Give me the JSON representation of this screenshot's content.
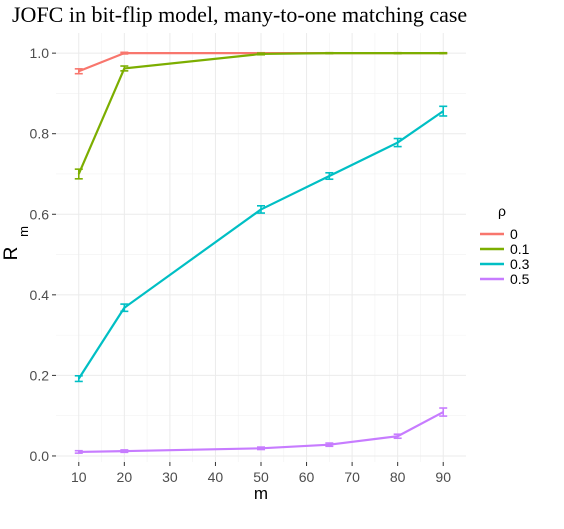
{
  "chart_data": {
    "type": "line",
    "title": "JOFC in bit-flip model, many-to-one matching case",
    "xlabel": "m",
    "ylabel": "R",
    "ylabel_subscript": "m",
    "xlim": [
      5,
      95
    ],
    "ylim": [
      -0.015,
      1.05
    ],
    "x_ticks": [
      10,
      20,
      30,
      40,
      50,
      60,
      70,
      80,
      90
    ],
    "y_ticks": [
      0.0,
      0.2,
      0.4,
      0.6,
      0.8,
      1.0
    ],
    "y_tick_labels": [
      "0.0",
      "0.2",
      "0.4",
      "0.6",
      "0.8",
      "1.0"
    ],
    "grid": true,
    "legend_title": "ρ",
    "legend_position": "right",
    "series": [
      {
        "name": "0",
        "color": "#F8766D",
        "x": [
          10,
          20,
          50,
          65,
          80,
          90
        ],
        "y": [
          0.955,
          1.0,
          1.0,
          1.0,
          1.0,
          1.0
        ],
        "err": [
          0.006,
          0.002,
          0.001,
          0.001,
          0.001,
          0.001
        ]
      },
      {
        "name": "0.1",
        "color": "#7CAE00",
        "x": [
          10,
          20,
          50,
          65,
          80,
          90
        ],
        "y": [
          0.7,
          0.962,
          0.998,
          1.0,
          1.0,
          1.0
        ],
        "err": [
          0.012,
          0.006,
          0.002,
          0.001,
          0.001,
          0.001
        ]
      },
      {
        "name": "0.3",
        "color": "#00BFC4",
        "x": [
          10,
          20,
          50,
          65,
          80,
          90
        ],
        "y": [
          0.192,
          0.368,
          0.612,
          0.695,
          0.778,
          0.856
        ],
        "err": [
          0.007,
          0.009,
          0.009,
          0.008,
          0.01,
          0.012
        ]
      },
      {
        "name": "0.5",
        "color": "#C77CFF",
        "x": [
          10,
          20,
          50,
          65,
          80,
          90
        ],
        "y": [
          0.01,
          0.012,
          0.019,
          0.028,
          0.049,
          0.109
        ],
        "err": [
          0.003,
          0.003,
          0.003,
          0.004,
          0.005,
          0.01
        ]
      }
    ]
  }
}
